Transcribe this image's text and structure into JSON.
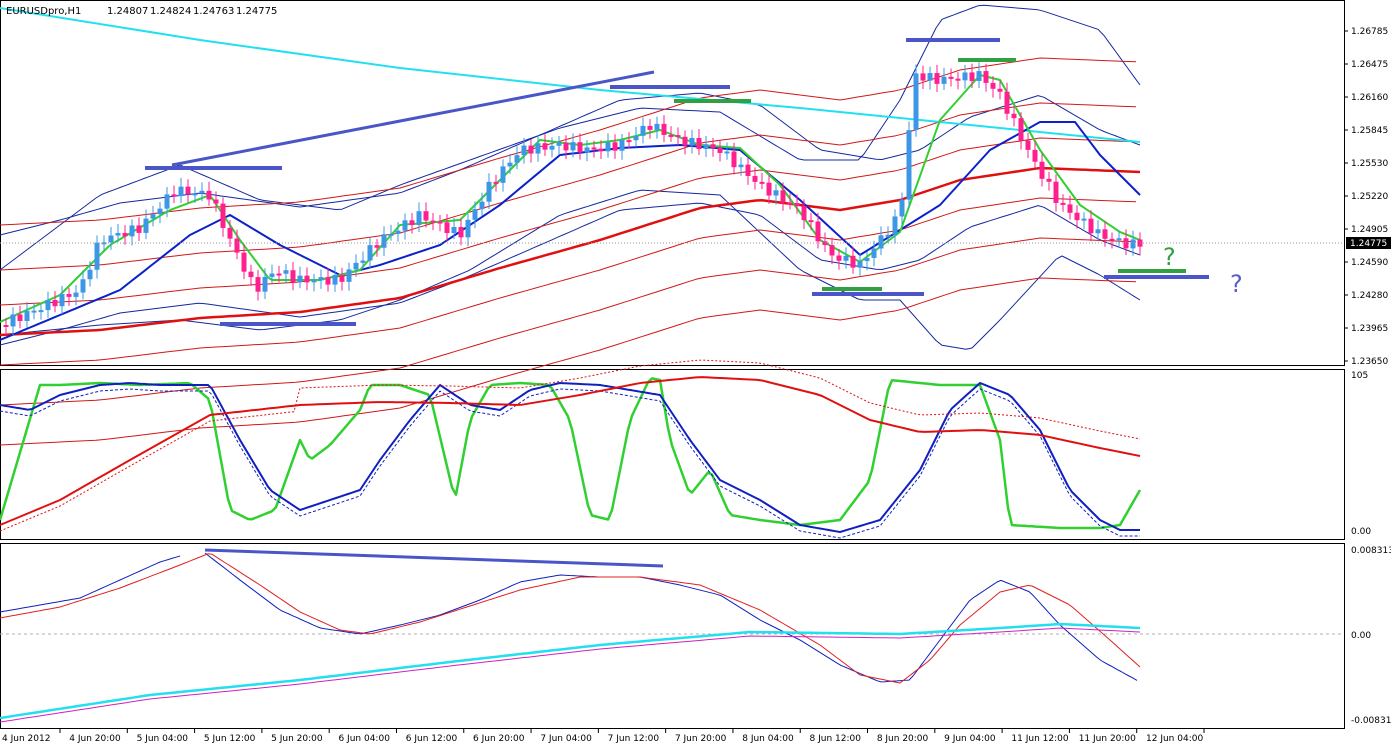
{
  "header": {
    "symbol": "EURUSDpro,H1",
    "open": "1.24807",
    "high": "1.24824",
    "low": "1.24763",
    "close": "1.24775"
  },
  "colors": {
    "bull": "#3d97e6",
    "bear": "#ff1f8e",
    "ema_fast": "#30d030",
    "ema_mid": "#0a22c8",
    "ema_slow": "#e01010",
    "sma_long": "#22e0f0",
    "bands_outer": "#d01818",
    "bands_inner": "#1428a0",
    "annotation_line": "#4a55c8",
    "annotation_green": "#30a040",
    "annotation_question": "#5a5cc8",
    "price_tag_bg": "#000000",
    "osc_red": "#e01010",
    "macd_fast": "#1020c0",
    "macd_slow": "#e02020",
    "macd_cyan": "#22e0f0",
    "macd_magenta": "#d020c0"
  },
  "price_axis": {
    "ticks": [
      "1.26785",
      "1.26475",
      "1.26160",
      "1.25845",
      "1.25530",
      "1.25220",
      "1.24905",
      "1.24590",
      "1.24280",
      "1.23965",
      "1.23650"
    ],
    "current": "1.24775"
  },
  "oscillator_axis": {
    "top": "105",
    "bottom": "0.00"
  },
  "macd_axis": {
    "top": "0.008313",
    "mid": "0.00",
    "bottom": "-0.00831"
  },
  "time_axis": [
    "4 Jun 2012",
    "4 Jun 20:00",
    "5 Jun 04:00",
    "5 Jun 12:00",
    "5 Jun 20:00",
    "6 Jun 04:00",
    "6 Jun 12:00",
    "6 Jun 20:00",
    "7 Jun 04:00",
    "7 Jun 12:00",
    "7 Jun 20:00",
    "8 Jun 04:00",
    "8 Jun 12:00",
    "8 Jun 20:00",
    "9 Jun 04:00",
    "11 Jun 12:00",
    "11 Jun 20:00",
    "12 Jun 04:00"
  ],
  "annotations": {
    "question_green": "?",
    "question_blue": "?"
  },
  "chart_data": {
    "type": "candlestick",
    "symbol": "EURUSDpro",
    "timeframe": "H1",
    "ylim": [
      1.2365,
      1.2695
    ],
    "x_range": [
      "4 Jun 2012",
      "12 Jun 04:00"
    ],
    "grid": false,
    "series_note_unlabeled": "moving averages and envelopes drawn without legend",
    "oscillator": {
      "ylim": [
        0,
        105
      ]
    },
    "macd": {
      "ylim": [
        -0.00831,
        0.008313
      ]
    }
  }
}
